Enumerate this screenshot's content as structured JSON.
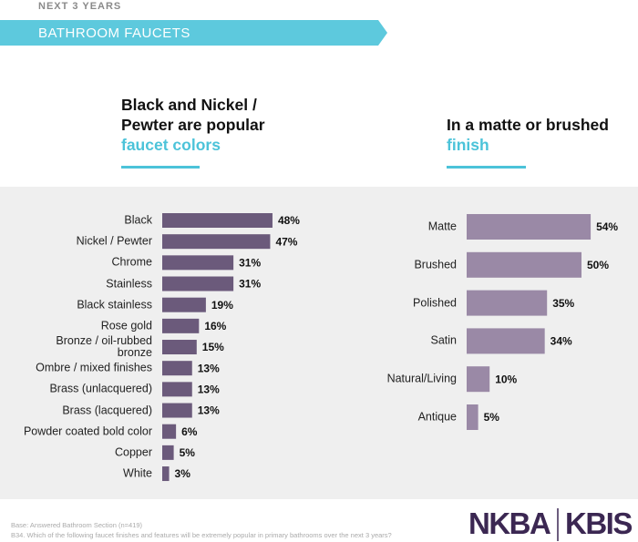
{
  "header": {
    "eyebrow": "NEXT 3 YEARS",
    "banner": "BATHROOM FAUCETS"
  },
  "chart_data": [
    {
      "type": "hbar",
      "title": "Black and Nickel / Pewter are popular",
      "title_highlight": "faucet colors",
      "color": "#6b5a7b",
      "categories": [
        "Black",
        "Nickel / Pewter",
        "Chrome",
        "Stainless",
        "Black stainless",
        "Rose gold",
        "Bronze / oil-rubbed bronze",
        "Ombre / mixed finishes",
        "Brass (unlacquered)",
        "Brass (lacquered)",
        "Powder coated bold color",
        "Copper",
        "White"
      ],
      "values": [
        48,
        47,
        31,
        31,
        19,
        16,
        15,
        13,
        13,
        13,
        6,
        5,
        3
      ],
      "value_labels": [
        "48%",
        "47%",
        "31%",
        "31%",
        "19%",
        "16%",
        "15%",
        "13%",
        "13%",
        "13%",
        "6%",
        "5%",
        "3%"
      ]
    },
    {
      "type": "hbar",
      "title": "In a matte or brushed",
      "title_highlight": "finish",
      "color": "#9a89a6",
      "categories": [
        "Matte",
        "Brushed",
        "Polished",
        "Satin",
        "Natural/Living",
        "Antique"
      ],
      "values": [
        54,
        50,
        35,
        34,
        10,
        5
      ],
      "value_labels": [
        "54%",
        "50%",
        "35%",
        "34%",
        "10%",
        "5%"
      ]
    }
  ],
  "footer": {
    "base": "Base:  Answered Bathroom Section (n=419)",
    "question": "B34. Which of the following faucet finishes and features will be extremely popular in primary bathrooms over the next 3 years?"
  },
  "logo": {
    "left": "NKBA",
    "right": "KBIS"
  }
}
